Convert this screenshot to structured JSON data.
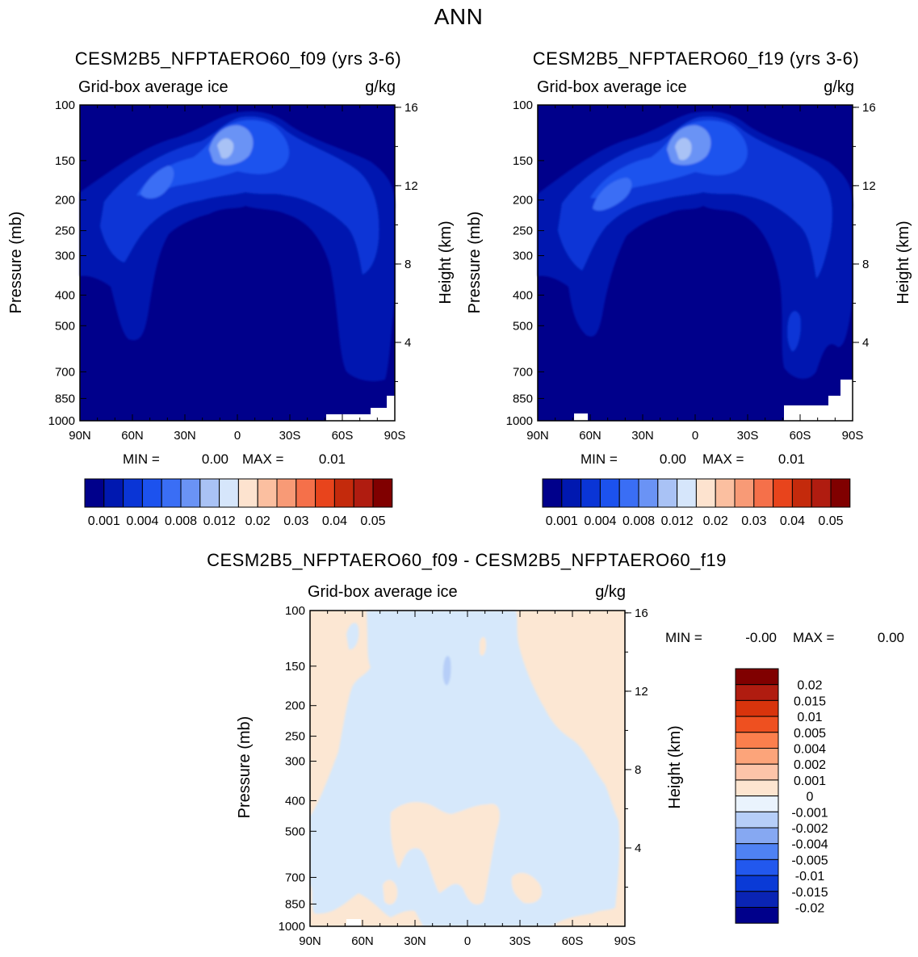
{
  "figure_title": "ANN",
  "colors": {
    "bg_level": "#00008b",
    "seq_levels": [
      "#00008b",
      "#0018b0",
      "#0a35d6",
      "#1c52ee",
      "#3a6ef5",
      "#6a93f5",
      "#a9c2f5",
      "#d6e6fb"
    ],
    "div_neg": "#d6e8fb",
    "div_pos": "#fce7d3"
  },
  "chart_data": [
    {
      "type": "contour",
      "title": "CESM2B5_NFPTAERO60_f09 (yrs 3-6)",
      "subtitle_left": "Grid-box average ice",
      "subtitle_right": "g/kg",
      "ylabel": "Pressure (mb)",
      "y2label": "Height (km)",
      "x_ticks": [
        "90N",
        "60N",
        "30N",
        "0",
        "30S",
        "60S",
        "90S"
      ],
      "pressure_ticks": [
        "100",
        "150",
        "200",
        "250",
        "300",
        "400",
        "500",
        "700",
        "850",
        "1000"
      ],
      "height_ticks": [
        "16",
        "12",
        "8",
        "4"
      ],
      "min_label": "MIN =",
      "min_value": "0.00",
      "max_label": "MAX =",
      "max_value": "0.01",
      "colorbar_labels": [
        "0.001",
        "0.004",
        "0.008",
        "0.012",
        "0.02",
        "0.03",
        "0.04",
        "0.05"
      ],
      "colorbar_colors": [
        "#00008b",
        "#0018b0",
        "#0a35d6",
        "#1c52ee",
        "#3a6ef5",
        "#6a93f5",
        "#a9c2f5",
        "#d6e6fb",
        "#fde3cf",
        "#fbbfa0",
        "#f89a76",
        "#f5704a",
        "#e8441c",
        "#c42a0c",
        "#b01c10",
        "#800000"
      ]
    },
    {
      "type": "contour",
      "title": "CESM2B5_NFPTAERO60_f19 (yrs 3-6)",
      "subtitle_left": "Grid-box average ice",
      "subtitle_right": "g/kg",
      "ylabel": "Pressure (mb)",
      "y2label": "Height (km)",
      "x_ticks": [
        "90N",
        "60N",
        "30N",
        "0",
        "30S",
        "60S",
        "90S"
      ],
      "pressure_ticks": [
        "100",
        "150",
        "200",
        "250",
        "300",
        "400",
        "500",
        "700",
        "850",
        "1000"
      ],
      "height_ticks": [
        "16",
        "12",
        "8",
        "4"
      ],
      "min_label": "MIN =",
      "min_value": "0.00",
      "max_label": "MAX =",
      "max_value": "0.01",
      "colorbar_labels": [
        "0.001",
        "0.004",
        "0.008",
        "0.012",
        "0.02",
        "0.03",
        "0.04",
        "0.05"
      ],
      "colorbar_colors": [
        "#00008b",
        "#0018b0",
        "#0a35d6",
        "#1c52ee",
        "#3a6ef5",
        "#6a93f5",
        "#a9c2f5",
        "#d6e6fb",
        "#fde3cf",
        "#fbbfa0",
        "#f89a76",
        "#f5704a",
        "#e8441c",
        "#c42a0c",
        "#b01c10",
        "#800000"
      ]
    },
    {
      "type": "contour",
      "title": "CESM2B5_NFPTAERO60_f09 - CESM2B5_NFPTAERO60_f19",
      "subtitle_left": "Grid-box average ice",
      "subtitle_right": "g/kg",
      "ylabel": "Pressure (mb)",
      "y2label": "Height (km)",
      "x_ticks": [
        "90N",
        "60N",
        "30N",
        "0",
        "30S",
        "60S",
        "90S"
      ],
      "pressure_ticks": [
        "100",
        "150",
        "200",
        "250",
        "300",
        "400",
        "500",
        "700",
        "850",
        "1000"
      ],
      "height_ticks": [
        "16",
        "12",
        "8",
        "4"
      ],
      "min_label": "MIN =",
      "min_value": "-0.00",
      "max_label": "MAX =",
      "max_value": "0.00",
      "colorbar_labels": [
        "0.02",
        "0.015",
        "0.01",
        "0.005",
        "0.004",
        "0.002",
        "0.001",
        "0",
        "-0.001",
        "-0.002",
        "-0.004",
        "-0.005",
        "-0.01",
        "-0.015",
        "-0.02"
      ],
      "colorbar_colors": [
        "#800000",
        "#b01c10",
        "#d8340c",
        "#ee5020",
        "#fb7f4d",
        "#fca47a",
        "#fdc4a9",
        "#fde5d0",
        "#eaf3fd",
        "#b6cef8",
        "#86a8f2",
        "#4f82f4",
        "#2258ee",
        "#0a3ad6",
        "#0a24b4",
        "#00008b"
      ]
    }
  ]
}
